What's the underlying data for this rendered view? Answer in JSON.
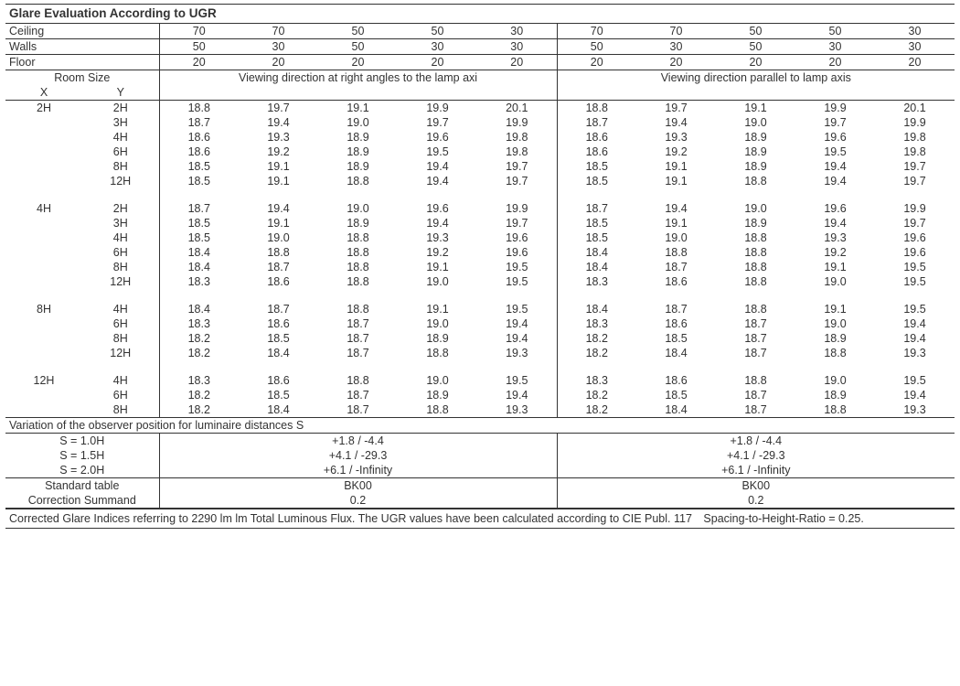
{
  "title": "Glare Evaluation According to UGR",
  "rows_header": {
    "ceiling_label": "Ceiling",
    "walls_label": "Walls",
    "floor_label": "Floor",
    "ceiling": [
      70,
      70,
      50,
      50,
      30,
      70,
      70,
      50,
      50,
      30
    ],
    "walls": [
      50,
      30,
      50,
      30,
      30,
      50,
      30,
      50,
      30,
      30
    ],
    "floor": [
      20,
      20,
      20,
      20,
      20,
      20,
      20,
      20,
      20,
      20
    ]
  },
  "roomsize_label": "Room Size",
  "x_label": "X",
  "y_label": "Y",
  "direction_a": "Viewing direction at right angles to the lamp axi",
  "direction_b": "Viewing direction parallel to lamp axis",
  "groups": [
    {
      "x": "2H",
      "rows": [
        {
          "y": "2H",
          "v": [
            18.8,
            19.7,
            19.1,
            19.9,
            20.1,
            18.8,
            19.7,
            19.1,
            19.9,
            20.1
          ]
        },
        {
          "y": "3H",
          "v": [
            18.7,
            19.4,
            19.0,
            19.7,
            19.9,
            18.7,
            19.4,
            19.0,
            19.7,
            19.9
          ]
        },
        {
          "y": "4H",
          "v": [
            18.6,
            19.3,
            18.9,
            19.6,
            19.8,
            18.6,
            19.3,
            18.9,
            19.6,
            19.8
          ]
        },
        {
          "y": "6H",
          "v": [
            18.6,
            19.2,
            18.9,
            19.5,
            19.8,
            18.6,
            19.2,
            18.9,
            19.5,
            19.8
          ]
        },
        {
          "y": "8H",
          "v": [
            18.5,
            19.1,
            18.9,
            19.4,
            19.7,
            18.5,
            19.1,
            18.9,
            19.4,
            19.7
          ]
        },
        {
          "y": "12H",
          "v": [
            18.5,
            19.1,
            18.8,
            19.4,
            19.7,
            18.5,
            19.1,
            18.8,
            19.4,
            19.7
          ]
        }
      ]
    },
    {
      "x": "4H",
      "rows": [
        {
          "y": "2H",
          "v": [
            18.7,
            19.4,
            19.0,
            19.6,
            19.9,
            18.7,
            19.4,
            19.0,
            19.6,
            19.9
          ]
        },
        {
          "y": "3H",
          "v": [
            18.5,
            19.1,
            18.9,
            19.4,
            19.7,
            18.5,
            19.1,
            18.9,
            19.4,
            19.7
          ]
        },
        {
          "y": "4H",
          "v": [
            18.5,
            19.0,
            18.8,
            19.3,
            19.6,
            18.5,
            19.0,
            18.8,
            19.3,
            19.6
          ]
        },
        {
          "y": "6H",
          "v": [
            18.4,
            18.8,
            18.8,
            19.2,
            19.6,
            18.4,
            18.8,
            18.8,
            19.2,
            19.6
          ]
        },
        {
          "y": "8H",
          "v": [
            18.4,
            18.7,
            18.8,
            19.1,
            19.5,
            18.4,
            18.7,
            18.8,
            19.1,
            19.5
          ]
        },
        {
          "y": "12H",
          "v": [
            18.3,
            18.6,
            18.8,
            19.0,
            19.5,
            18.3,
            18.6,
            18.8,
            19.0,
            19.5
          ]
        }
      ]
    },
    {
      "x": "8H",
      "rows": [
        {
          "y": "4H",
          "v": [
            18.4,
            18.7,
            18.8,
            19.1,
            19.5,
            18.4,
            18.7,
            18.8,
            19.1,
            19.5
          ]
        },
        {
          "y": "6H",
          "v": [
            18.3,
            18.6,
            18.7,
            19.0,
            19.4,
            18.3,
            18.6,
            18.7,
            19.0,
            19.4
          ]
        },
        {
          "y": "8H",
          "v": [
            18.2,
            18.5,
            18.7,
            18.9,
            19.4,
            18.2,
            18.5,
            18.7,
            18.9,
            19.4
          ]
        },
        {
          "y": "12H",
          "v": [
            18.2,
            18.4,
            18.7,
            18.8,
            19.3,
            18.2,
            18.4,
            18.7,
            18.8,
            19.3
          ]
        }
      ]
    },
    {
      "x": "12H",
      "rows": [
        {
          "y": "4H",
          "v": [
            18.3,
            18.6,
            18.8,
            19.0,
            19.5,
            18.3,
            18.6,
            18.8,
            19.0,
            19.5
          ]
        },
        {
          "y": "6H",
          "v": [
            18.2,
            18.5,
            18.7,
            18.9,
            19.4,
            18.2,
            18.5,
            18.7,
            18.9,
            19.4
          ]
        },
        {
          "y": "8H",
          "v": [
            18.2,
            18.4,
            18.7,
            18.8,
            19.3,
            18.2,
            18.4,
            18.7,
            18.8,
            19.3
          ]
        }
      ]
    }
  ],
  "variation_title": "Variation of the observer position for luminaire distances S",
  "variation_rows": [
    {
      "label": "S = 1.0H",
      "a": "+1.8 / -4.4",
      "b": "+1.8 / -4.4"
    },
    {
      "label": "S = 1.5H",
      "a": "+4.1 / -29.3",
      "b": "+4.1 / -29.3"
    },
    {
      "label": "S = 2.0H",
      "a": "+6.1 / -Infinity",
      "b": "+6.1 / -Infinity"
    }
  ],
  "std_label": "Standard table",
  "std_a": "BK00",
  "std_b": "BK00",
  "corr_label": "Correction Summand",
  "corr_a": "0.2",
  "corr_b": "0.2",
  "footnote": "Corrected Glare Indices referring to 2290 lm lm Total Luminous Flux. The UGR values have been calculated according to CIE Publ. 117 Spacing-to-Height-Ratio = 0.25."
}
